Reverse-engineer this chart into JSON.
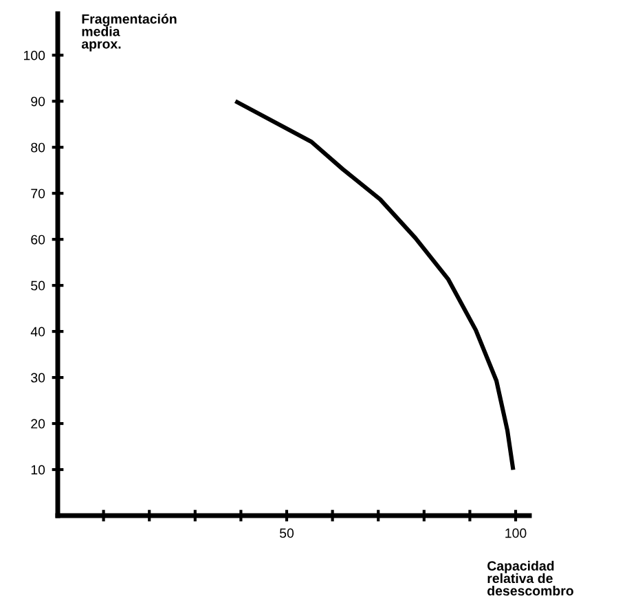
{
  "chart_data": {
    "type": "line",
    "ylabel": "Fragmentación\nmedia\naprox.",
    "xlabel": "Capacidad\nrelativa de\ndesescombro",
    "x": [
      39.2,
      55.4,
      62.3,
      70.4,
      78.1,
      85.3,
      91.3,
      95.8,
      98.2,
      99.4
    ],
    "series": [
      {
        "color": "#000000",
        "values": [
          89.8,
          81.2,
          75.2,
          68.7,
          60.3,
          51.3,
          40.3,
          29.3,
          18.5,
          10.4
        ]
      }
    ],
    "xlim": [
      0,
      103
    ],
    "ylim": [
      0,
      109
    ],
    "xticks": [
      {
        "value": 10,
        "label": null
      },
      {
        "value": 20,
        "label": null
      },
      {
        "value": 30,
        "label": null
      },
      {
        "value": 40,
        "label": null
      },
      50,
      {
        "value": 60,
        "label": null
      },
      {
        "value": 70,
        "label": null
      },
      {
        "value": 80,
        "label": null
      },
      {
        "value": 90,
        "label": null
      },
      100
    ],
    "yticks": [
      10,
      20,
      30,
      40,
      50,
      60,
      70,
      80,
      90,
      100
    ],
    "grid": false,
    "legend": false,
    "marker": "none",
    "line_style": "solid"
  }
}
